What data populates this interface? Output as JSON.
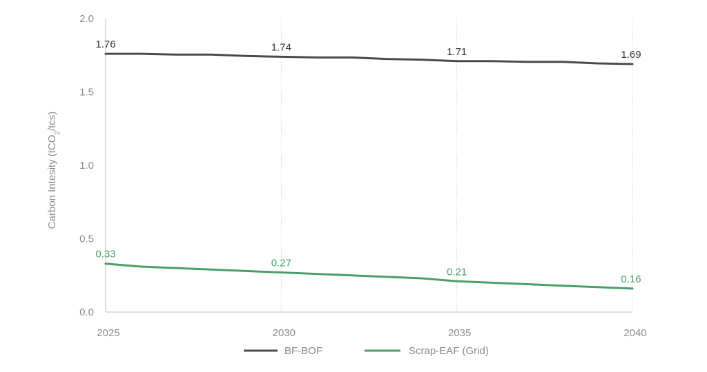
{
  "chart_data": {
    "type": "line",
    "title": "",
    "xlabel": "",
    "ylabel": "Carbon Intesity (tCO2/tcs)",
    "ylabel_parts": {
      "before": "Carbon Intesity (tCO",
      "sub": "2",
      "after": "/tcs)"
    },
    "x": [
      2025,
      2026,
      2027,
      2028,
      2029,
      2030,
      2031,
      2032,
      2033,
      2034,
      2035,
      2036,
      2037,
      2038,
      2039,
      2040
    ],
    "xticks": [
      "2025",
      "2030",
      "2035",
      "2040"
    ],
    "yticks": [
      "0.0",
      "0.5",
      "1.0",
      "1.5",
      "2.0"
    ],
    "xlim": [
      2025,
      2040
    ],
    "ylim": [
      0,
      2.0
    ],
    "grid": "vertical dotted at x ticks",
    "legend": "bottom-center",
    "series": [
      {
        "name": "BF-BOF",
        "color": "#4a4a4a",
        "values": [
          1.76,
          1.76,
          1.755,
          1.755,
          1.745,
          1.74,
          1.735,
          1.735,
          1.725,
          1.72,
          1.71,
          1.71,
          1.705,
          1.705,
          1.695,
          1.69
        ],
        "labels": [
          {
            "x": 2025,
            "text": "1.76"
          },
          {
            "x": 2030,
            "text": "1.74"
          },
          {
            "x": 2035,
            "text": "1.71"
          },
          {
            "x": 2040,
            "text": "1.69"
          }
        ]
      },
      {
        "name": "Scrap-EAF (Grid)",
        "color": "#4a9e6a",
        "values": [
          0.33,
          0.31,
          0.3,
          0.29,
          0.28,
          0.27,
          0.26,
          0.25,
          0.24,
          0.23,
          0.21,
          0.2,
          0.19,
          0.18,
          0.17,
          0.16
        ],
        "labels": [
          {
            "x": 2025,
            "text": "0.33"
          },
          {
            "x": 2030,
            "text": "0.27"
          },
          {
            "x": 2035,
            "text": "0.21"
          },
          {
            "x": 2040,
            "text": "0.16"
          }
        ]
      }
    ]
  }
}
